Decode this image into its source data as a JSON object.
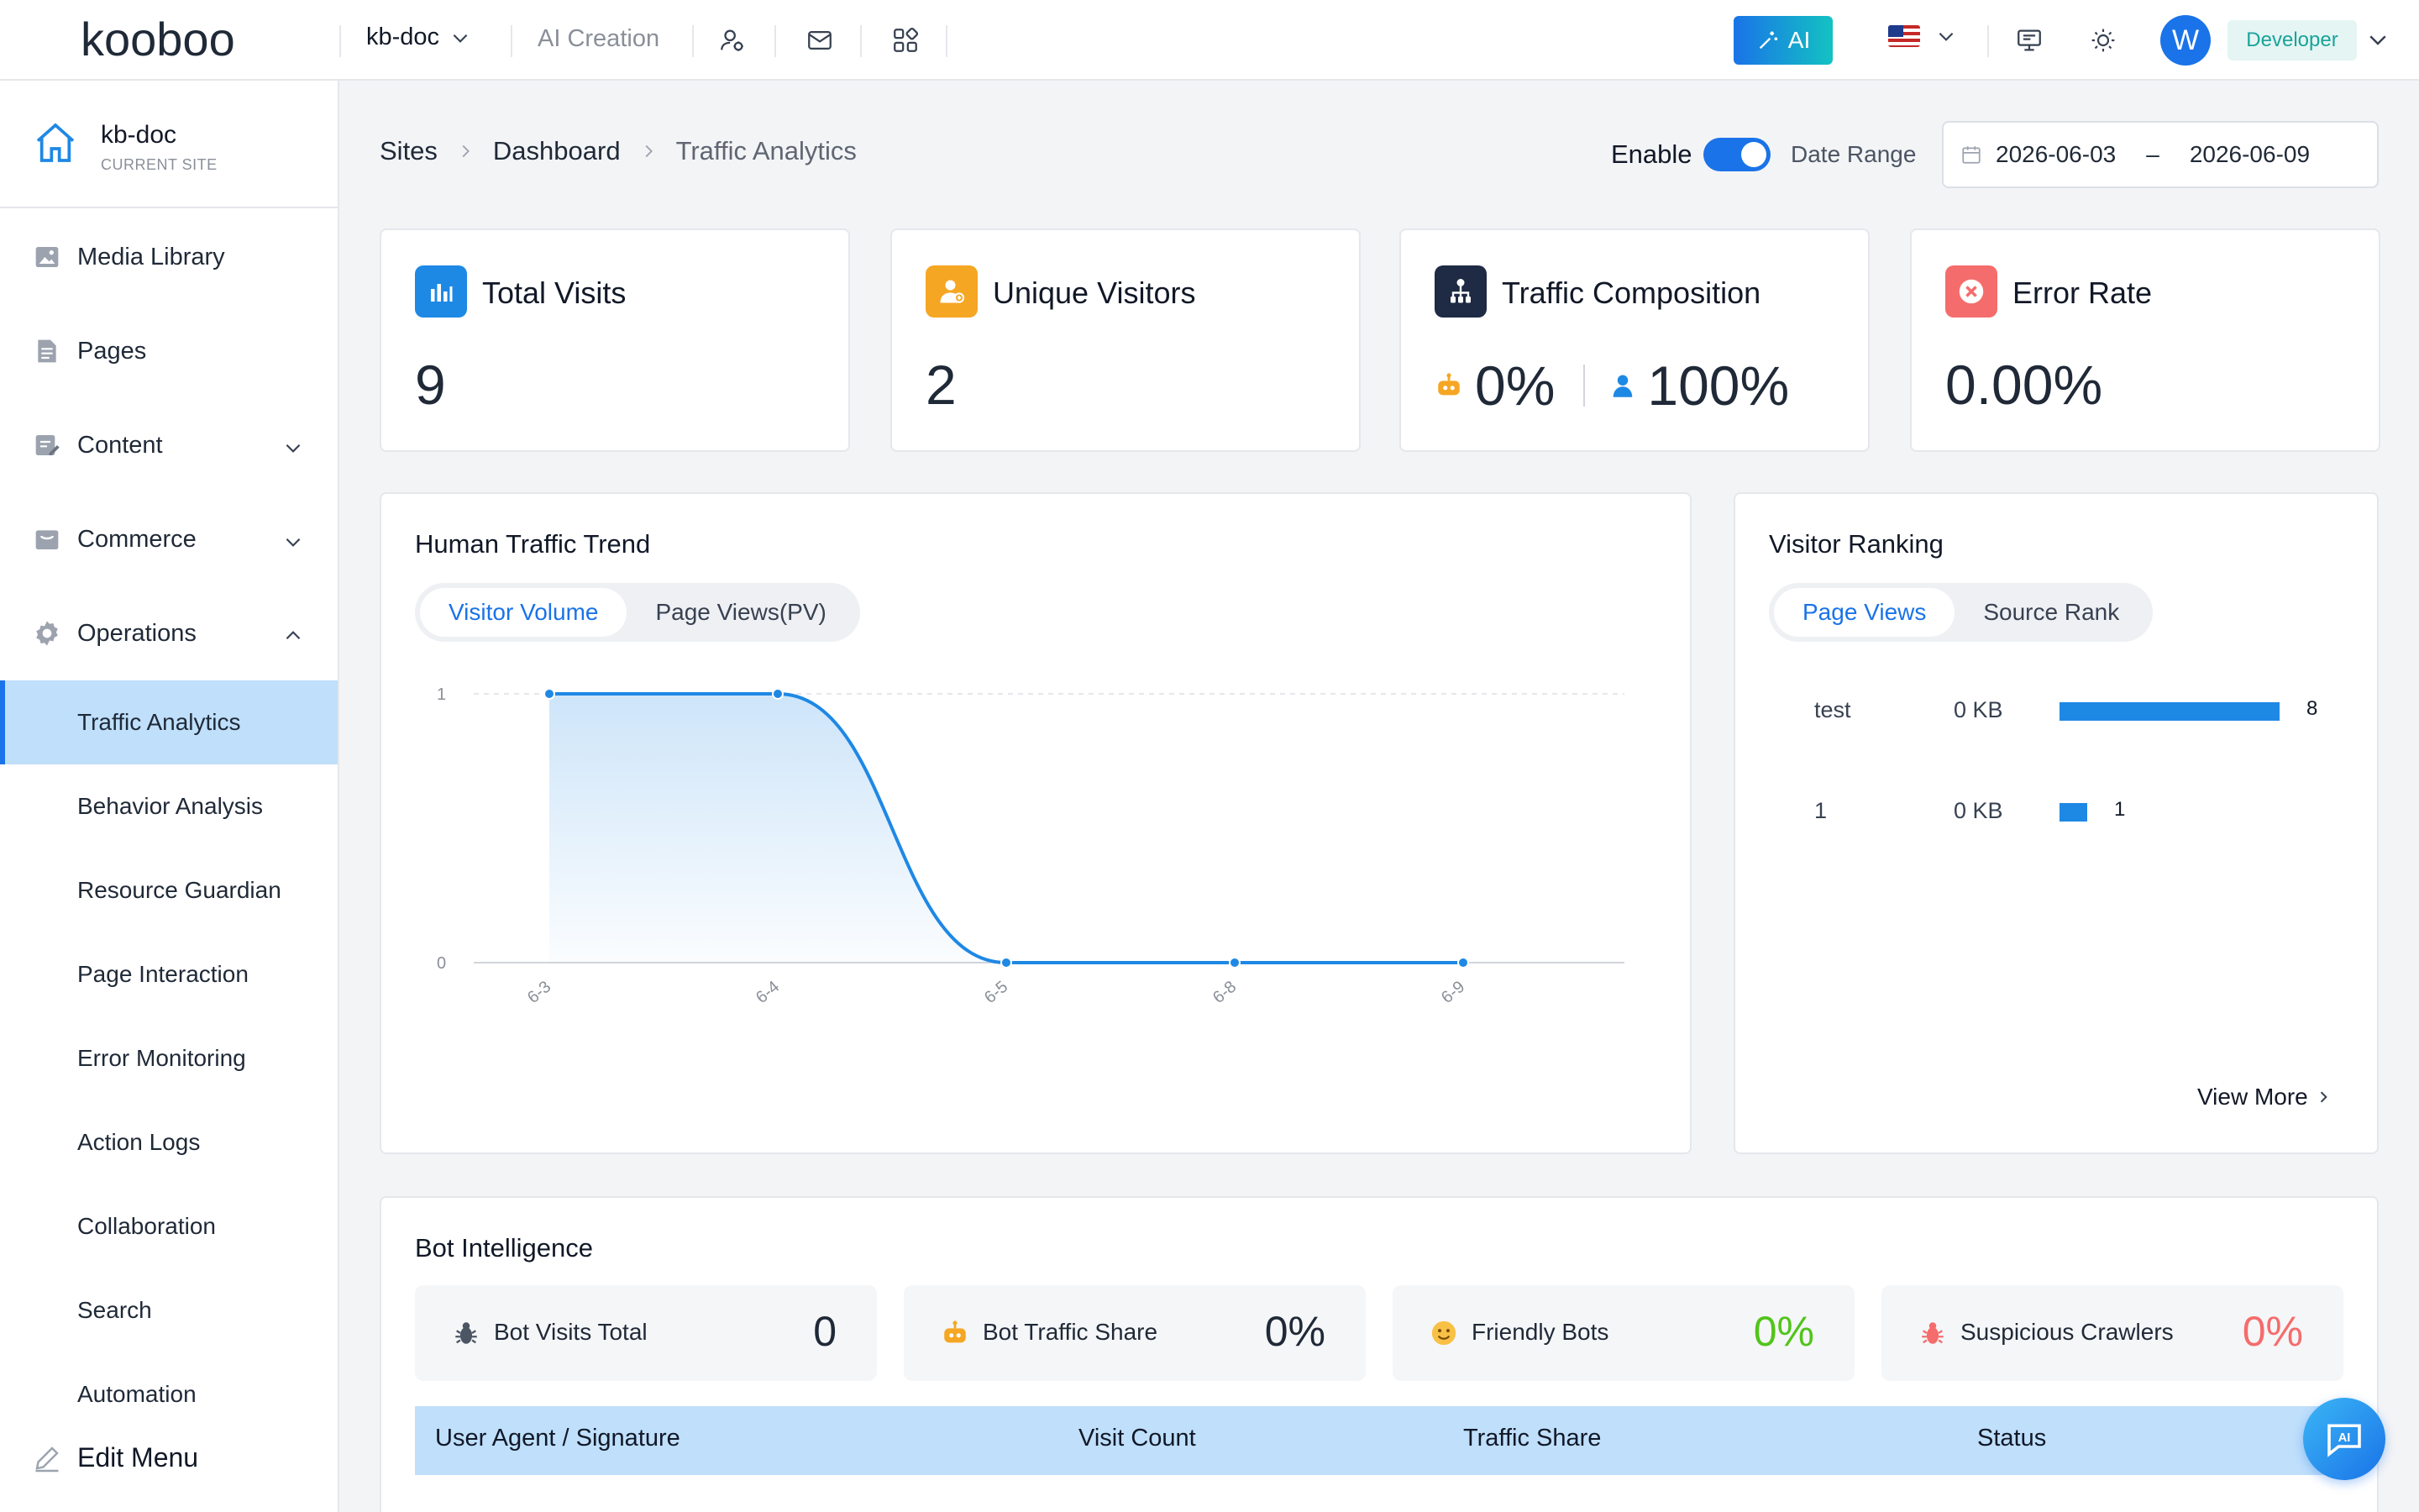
{
  "app": {
    "logo_text": "kooboo"
  },
  "topbar": {
    "site_select": "kb-doc",
    "ai_creation": "AI Creation",
    "icons": [
      "user-manage-icon",
      "mail-icon",
      "apps-grid-icon",
      "monitor-icon",
      "sun-icon"
    ],
    "ai_button": "AI",
    "language_flag": "us-flag-icon",
    "avatar_letter": "W",
    "role": "Developer"
  },
  "sidebar": {
    "site_name": "kb-doc",
    "site_caption": "CURRENT SITE",
    "items": [
      {
        "label": "Media Library",
        "icon": "image-icon"
      },
      {
        "label": "Pages",
        "icon": "page-icon"
      },
      {
        "label": "Content",
        "icon": "edit-doc-icon",
        "expandable": true
      },
      {
        "label": "Commerce",
        "icon": "store-icon",
        "expandable": true
      },
      {
        "label": "Operations",
        "icon": "gear-icon",
        "expanded": true
      }
    ],
    "sub_items": [
      "Traffic Analytics",
      "Behavior Analysis",
      "Resource Guardian",
      "Page Interaction",
      "Error Monitoring",
      "Action Logs",
      "Collaboration",
      "Search",
      "Automation"
    ],
    "active_sub_item": "Traffic Analytics",
    "edit_menu": "Edit Menu"
  },
  "header": {
    "breadcrumb": [
      "Sites",
      "Dashboard",
      "Traffic Analytics"
    ],
    "enable_label": "Enable",
    "enable_on": true,
    "date_range_label": "Date Range",
    "date_start": "2026-06-03",
    "date_sep": "–",
    "date_end": "2026-06-09"
  },
  "stats": {
    "total_visits": {
      "title": "Total Visits",
      "value": "9",
      "color": "#1e88e5"
    },
    "unique_visitors": {
      "title": "Unique Visitors",
      "value": "2",
      "color": "#f5a623"
    },
    "traffic_composition": {
      "title": "Traffic Composition",
      "bot_value": "0%",
      "human_value": "100%",
      "color": "#1f2a44"
    },
    "error_rate": {
      "title": "Error Rate",
      "value": "0.00%",
      "color": "#f56c6c"
    }
  },
  "trend": {
    "title": "Human Traffic Trend",
    "tabs": [
      "Visitor Volume",
      "Page Views(PV)"
    ],
    "active_tab": "Visitor Volume"
  },
  "chart_data": {
    "type": "line",
    "x": [
      "6-3",
      "6-4",
      "6-5",
      "6-8",
      "6-9"
    ],
    "values": [
      1,
      1,
      0,
      0,
      0
    ],
    "yticks": [
      "0",
      "1"
    ],
    "ylim": [
      0,
      1
    ],
    "smooth": true,
    "area_fill": true,
    "grid": true,
    "color": "#1e88e5"
  },
  "ranking": {
    "title": "Visitor Ranking",
    "tabs": [
      "Page Views",
      "Source Rank"
    ],
    "active_tab": "Page Views",
    "rows": [
      {
        "name": "test",
        "size": "0 KB",
        "count": 8
      },
      {
        "name": "1",
        "size": "0 KB",
        "count": 1
      }
    ],
    "view_more": "View More"
  },
  "bots": {
    "title": "Bot Intelligence",
    "stats": [
      {
        "label": "Bot Visits Total",
        "value": "0",
        "icon": "bug-icon",
        "color": "#1f2937"
      },
      {
        "label": "Bot Traffic Share",
        "value": "0%",
        "icon": "robot-icon",
        "color": "#1f2937"
      },
      {
        "label": "Friendly Bots",
        "value": "0%",
        "icon": "smile-icon",
        "color": "#52c41a"
      },
      {
        "label": "Suspicious Crawlers",
        "value": "0%",
        "icon": "danger-bug-icon",
        "color": "#f56c6c"
      }
    ],
    "columns": [
      "User Agent / Signature",
      "Visit Count",
      "Traffic Share",
      "Status"
    ]
  },
  "fab": {
    "label": "AI"
  }
}
